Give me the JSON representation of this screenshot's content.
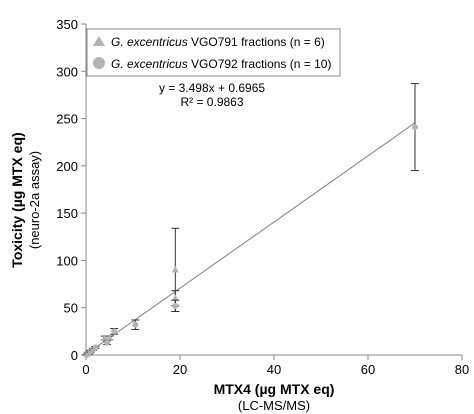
{
  "chart_data": {
    "type": "scatter",
    "xlabel": "MTX4 (µg MTX eq)",
    "xlabel_sub": "(LC-MS/MS)",
    "ylabel": "Toxicity (µg MTX eq)",
    "ylabel_sub": "(neuro-2a assay)",
    "xlim": [
      0,
      80
    ],
    "ylim": [
      0,
      350
    ],
    "x_ticks": [
      0,
      20,
      40,
      60,
      80
    ],
    "y_ticks": [
      0,
      50,
      100,
      150,
      200,
      250,
      300,
      350
    ],
    "legend": {
      "placement": "top-left",
      "entries": [
        {
          "species": "G. excentricus",
          "rest": " VGO791 fractions (n = 6)",
          "marker": "triangle",
          "color": "#b3b3b3"
        },
        {
          "species": "G. excentricus",
          "rest": " VGO792 fractions (n = 10)",
          "marker": "circle",
          "color": "#b3b3b3"
        }
      ]
    },
    "regression": {
      "equation": "y = 3.498x + 0.6965",
      "r2": "R² = 0.9863",
      "slope": 3.498,
      "intercept": 0.6965,
      "x_range": [
        0,
        70
      ]
    },
    "series": [
      {
        "marker": "triangle",
        "points": [
          {
            "x": 0.3,
            "y": 1,
            "err": 1
          },
          {
            "x": 0.8,
            "y": 3,
            "err": 1
          },
          {
            "x": 4.0,
            "y": 18,
            "err": 2
          },
          {
            "x": 5.0,
            "y": 18,
            "err": 2
          },
          {
            "x": 19.0,
            "y": 90,
            "err": 44
          },
          {
            "x": 19.0,
            "y": 60,
            "err": 8
          }
        ]
      },
      {
        "marker": "circle",
        "points": [
          {
            "x": 0.1,
            "y": 0,
            "err": 0.5
          },
          {
            "x": 0.5,
            "y": 2,
            "err": 1
          },
          {
            "x": 1.0,
            "y": 4,
            "err": 1
          },
          {
            "x": 1.5,
            "y": 6,
            "err": 1
          },
          {
            "x": 2.0,
            "y": 8,
            "err": 1
          },
          {
            "x": 4.5,
            "y": 13,
            "err": 2
          },
          {
            "x": 6.0,
            "y": 25,
            "err": 3
          },
          {
            "x": 10.5,
            "y": 32,
            "err": 5
          },
          {
            "x": 19.0,
            "y": 52,
            "err": 6
          },
          {
            "x": 70.0,
            "y": 241,
            "err": 46
          }
        ]
      }
    ],
    "colors": {
      "marker": "#b3b3b3",
      "line": "#808080",
      "axis": "#888888",
      "errorbar": "#333333"
    }
  }
}
